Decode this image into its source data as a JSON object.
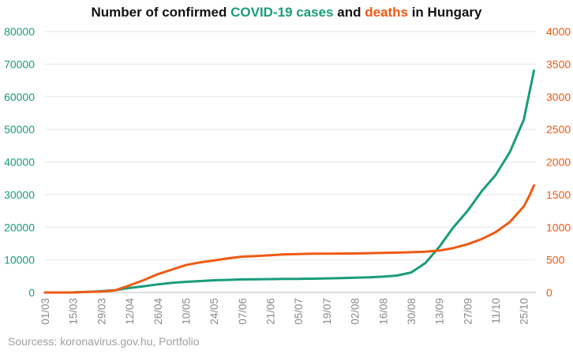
{
  "title": {
    "part1": "Number of confirmed ",
    "cases_word": "COVID-19 cases",
    "part2": " and ",
    "deaths_word": "deaths",
    "part3": " in Hungary"
  },
  "source": "Sourcess: koronavirus.gov.hu, Portfolio",
  "colors": {
    "cases": "#1a9c7c",
    "deaths": "#ee5a12",
    "grid": "#e6e6e6",
    "tick": "#8a8a8a"
  },
  "chart_data": {
    "type": "line",
    "title": "Number of confirmed COVID-19 cases and deaths in Hungary",
    "x_ticks": [
      "01/03",
      "15/03",
      "29/03",
      "12/04",
      "26/04",
      "10/05",
      "24/05",
      "07/06",
      "21/06",
      "05/07",
      "19/07",
      "02/08",
      "16/08",
      "30/08",
      "13/09",
      "27/09",
      "11/10",
      "25/10"
    ],
    "x_range": [
      "2020-03-01",
      "2020-10-30"
    ],
    "y_left": {
      "ticks": [
        0,
        10000,
        20000,
        30000,
        40000,
        50000,
        60000,
        70000,
        80000
      ],
      "range": [
        0,
        80000
      ]
    },
    "y_right": {
      "ticks": [
        0,
        500,
        1000,
        1500,
        2000,
        2500,
        3000,
        3500,
        4000
      ],
      "range": [
        0,
        4000
      ]
    },
    "grid": true,
    "series": [
      {
        "name": "COVID-19 cases",
        "axis": "left",
        "points": [
          [
            "2020-03-01",
            0
          ],
          [
            "2020-03-15",
            32
          ],
          [
            "2020-03-22",
            167
          ],
          [
            "2020-03-29",
            408
          ],
          [
            "2020-04-05",
            733
          ],
          [
            "2020-04-12",
            1410
          ],
          [
            "2020-04-19",
            1916
          ],
          [
            "2020-04-26",
            2500
          ],
          [
            "2020-05-03",
            2960
          ],
          [
            "2020-05-10",
            3263
          ],
          [
            "2020-05-17",
            3509
          ],
          [
            "2020-05-24",
            3756
          ],
          [
            "2020-05-31",
            3876
          ],
          [
            "2020-06-07",
            4000
          ],
          [
            "2020-06-14",
            4070
          ],
          [
            "2020-06-21",
            4100
          ],
          [
            "2020-06-28",
            4150
          ],
          [
            "2020-07-05",
            4180
          ],
          [
            "2020-07-12",
            4230
          ],
          [
            "2020-07-19",
            4330
          ],
          [
            "2020-07-26",
            4420
          ],
          [
            "2020-08-02",
            4520
          ],
          [
            "2020-08-09",
            4650
          ],
          [
            "2020-08-16",
            4850
          ],
          [
            "2020-08-23",
            5200
          ],
          [
            "2020-08-30",
            6140
          ],
          [
            "2020-09-06",
            9000
          ],
          [
            "2020-09-13",
            14000
          ],
          [
            "2020-09-20",
            20000
          ],
          [
            "2020-09-27",
            25000
          ],
          [
            "2020-10-04",
            31000
          ],
          [
            "2020-10-11",
            36000
          ],
          [
            "2020-10-18",
            43000
          ],
          [
            "2020-10-25",
            53000
          ],
          [
            "2020-10-28",
            62000
          ],
          [
            "2020-10-30",
            68000
          ]
        ]
      },
      {
        "name": "deaths",
        "axis": "right",
        "points": [
          [
            "2020-03-01",
            0
          ],
          [
            "2020-03-15",
            0
          ],
          [
            "2020-03-22",
            10
          ],
          [
            "2020-03-29",
            13
          ],
          [
            "2020-04-05",
            34
          ],
          [
            "2020-04-12",
            109
          ],
          [
            "2020-04-19",
            189
          ],
          [
            "2020-04-26",
            280
          ],
          [
            "2020-05-03",
            351
          ],
          [
            "2020-05-10",
            421
          ],
          [
            "2020-05-17",
            462
          ],
          [
            "2020-05-24",
            491
          ],
          [
            "2020-05-31",
            524
          ],
          [
            "2020-06-07",
            550
          ],
          [
            "2020-06-14",
            560
          ],
          [
            "2020-06-21",
            572
          ],
          [
            "2020-06-28",
            585
          ],
          [
            "2020-07-05",
            590
          ],
          [
            "2020-07-12",
            595
          ],
          [
            "2020-07-19",
            596
          ],
          [
            "2020-07-26",
            597
          ],
          [
            "2020-08-02",
            598
          ],
          [
            "2020-08-09",
            603
          ],
          [
            "2020-08-16",
            608
          ],
          [
            "2020-08-23",
            612
          ],
          [
            "2020-08-30",
            618
          ],
          [
            "2020-09-06",
            626
          ],
          [
            "2020-09-13",
            643
          ],
          [
            "2020-09-20",
            682
          ],
          [
            "2020-09-27",
            739
          ],
          [
            "2020-10-04",
            818
          ],
          [
            "2020-10-11",
            925
          ],
          [
            "2020-10-18",
            1080
          ],
          [
            "2020-10-25",
            1320
          ],
          [
            "2020-10-28",
            1500
          ],
          [
            "2020-10-30",
            1640
          ]
        ]
      }
    ]
  }
}
